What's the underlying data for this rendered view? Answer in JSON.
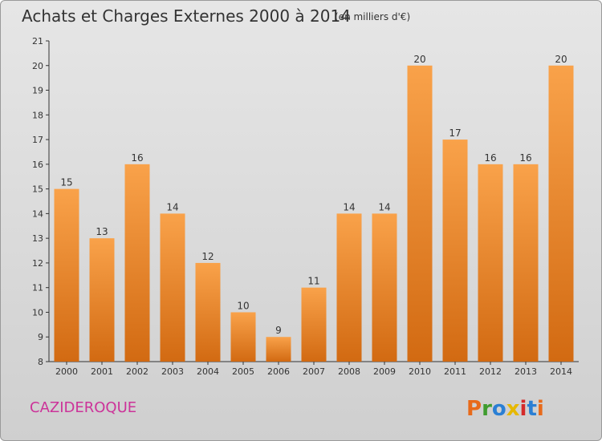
{
  "title": "Achats et Charges Externes 2000 à 2014",
  "subtitle": "(en milliers d'€)",
  "commune": "CAZIDEROQUE",
  "logo_text": "Proxiti",
  "colors": {
    "bar_light": "#f9a24a",
    "bar_dark": "#d26a12",
    "commune": "#cc3399",
    "logo_letters": [
      "#e86a1a",
      "#3f9c2e",
      "#2a7fd4",
      "#e6b800",
      "#d42a2a",
      "#2a7fd4",
      "#e86a1a"
    ]
  },
  "chart_data": {
    "type": "bar",
    "title": "Achats et Charges Externes 2000 à 2014",
    "subtitle": "(en milliers d'€)",
    "categories": [
      "2000",
      "2001",
      "2002",
      "2003",
      "2004",
      "2005",
      "2006",
      "2007",
      "2008",
      "2009",
      "2010",
      "2011",
      "2012",
      "2013",
      "2014"
    ],
    "values": [
      15,
      13,
      16,
      14,
      12,
      10,
      9,
      11,
      14,
      14,
      20,
      17,
      16,
      16,
      20
    ],
    "ylim": [
      8,
      21
    ],
    "yticks": [
      8,
      9,
      10,
      11,
      12,
      13,
      14,
      15,
      16,
      17,
      18,
      19,
      20,
      21
    ],
    "grid": false,
    "legend": "none"
  }
}
